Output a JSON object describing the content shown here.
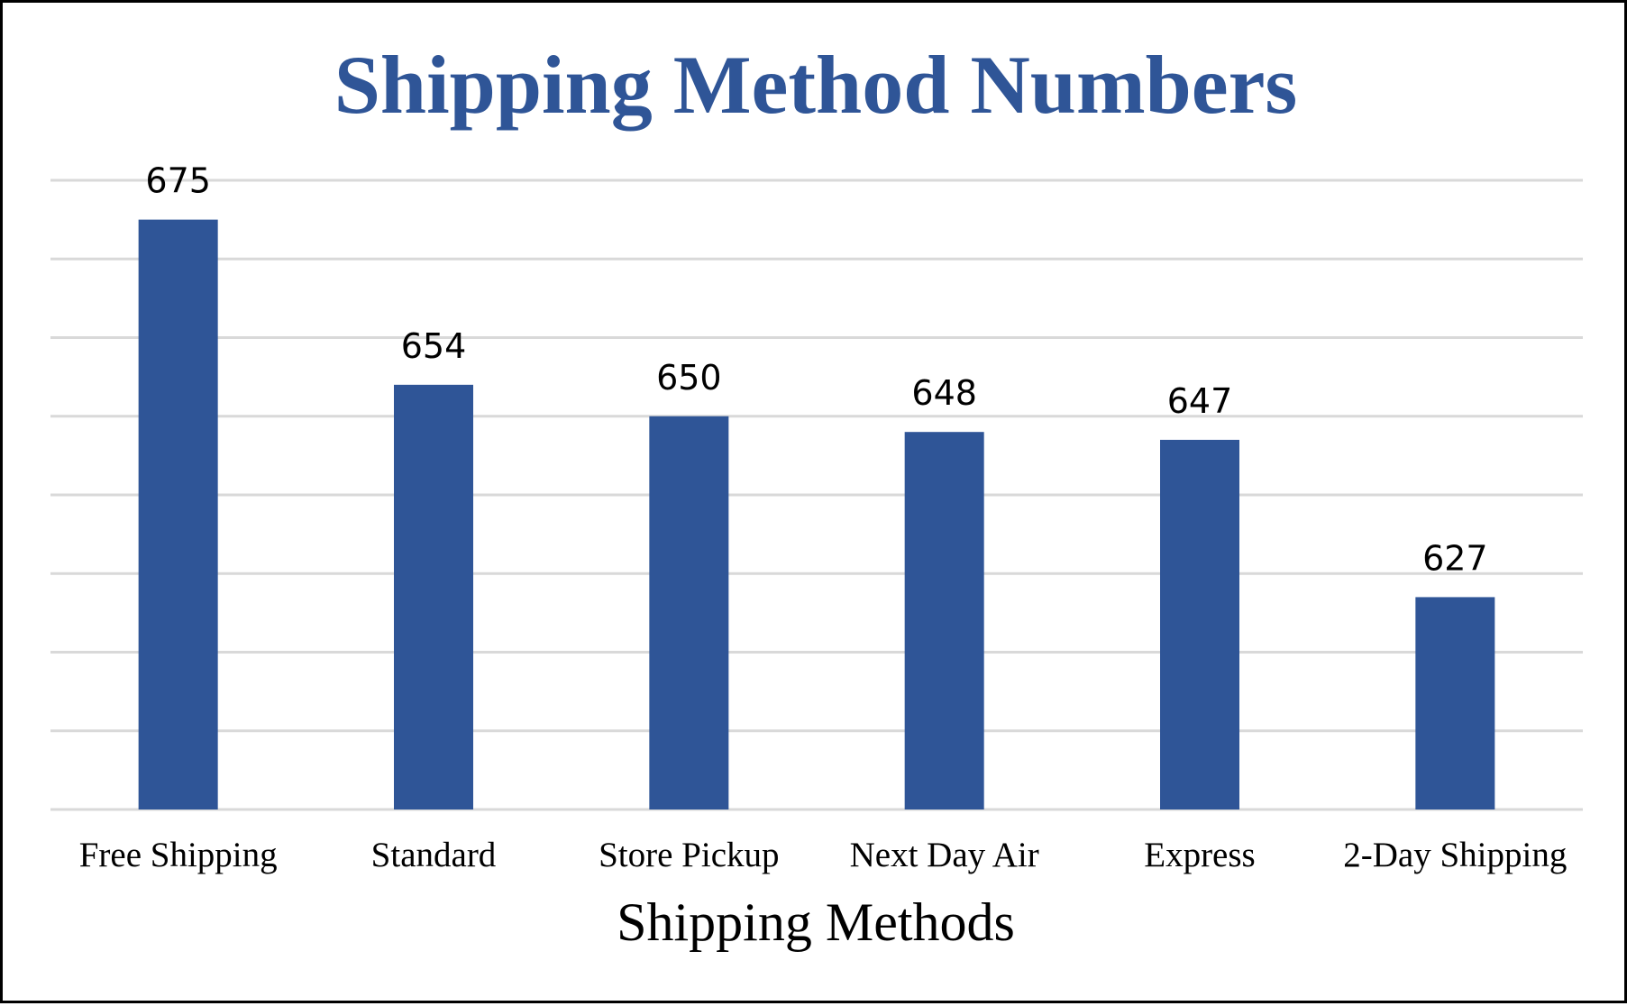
{
  "chart_data": {
    "type": "bar",
    "title": "Shipping Method Numbers",
    "xlabel": "Shipping Methods",
    "ylabel": "",
    "categories": [
      "Free Shipping",
      "Standard",
      "Store Pickup",
      "Next Day Air",
      "Express",
      "2-Day Shipping"
    ],
    "values": [
      675,
      654,
      650,
      648,
      647,
      627
    ],
    "data_labels": [
      "675",
      "654",
      "650",
      "648",
      "647",
      "627"
    ],
    "ylim": [
      600,
      680
    ],
    "y_gridline_step": 10,
    "y_tick_labels_shown": false,
    "grid": true,
    "legend": "none",
    "colors": {
      "bar": "#2F5597",
      "title": "#2F5597",
      "grid": "#D9D9D9",
      "border": "#000000"
    }
  }
}
